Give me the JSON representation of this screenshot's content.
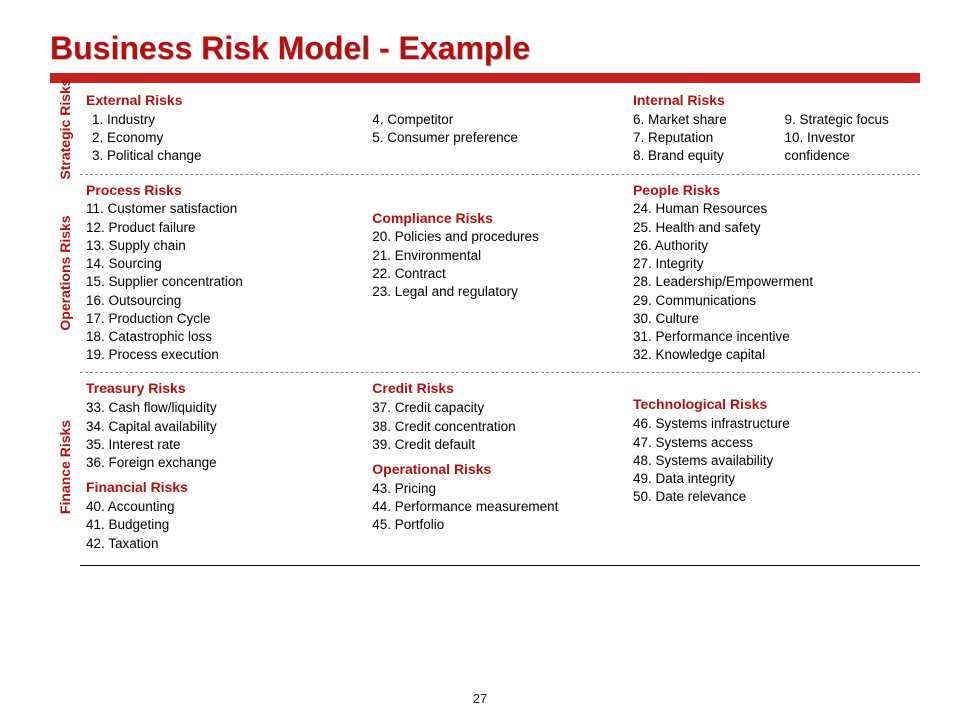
{
  "title": "Business Risk Model - Example",
  "pageNumber": "27",
  "colors": {
    "heading": "#b41010",
    "bar": "#c82020",
    "text": "#000000",
    "background": "#ffffff",
    "dash": "#888888"
  },
  "typography": {
    "title_fontsize_pt": 24,
    "label_fontsize_pt": 10.5,
    "body_fontsize_pt": 10,
    "font_family": "Arial"
  },
  "bands": {
    "strategic": {
      "label": "Strategic Risks",
      "external": {
        "heading": "External Risks",
        "colA": [
          "1. Industry",
          "2. Economy",
          "3. Political change"
        ],
        "colB": [
          "4. Competitor",
          "5. Consumer preference"
        ]
      },
      "internal": {
        "heading": "Internal Risks",
        "colA": [
          "6. Market share",
          "7. Reputation",
          "8. Brand equity"
        ],
        "colB": [
          "9.  Strategic focus",
          "10. Investor confidence"
        ]
      }
    },
    "operations": {
      "label": "Operations Risks",
      "process": {
        "heading": "Process Risks",
        "items": [
          "11. Customer satisfaction",
          "12. Product failure",
          "13. Supply chain",
          "14. Sourcing",
          "15. Supplier concentration",
          "16. Outsourcing",
          "17. Production Cycle",
          "18. Catastrophic loss",
          "19. Process execution"
        ]
      },
      "compliance": {
        "heading": "Compliance Risks",
        "items": [
          "20. Policies and procedures",
          "21. Environmental",
          "22. Contract",
          "23. Legal and regulatory"
        ]
      },
      "people": {
        "heading": "People Risks",
        "items": [
          "24. Human Resources",
          "25. Health and safety",
          "26. Authority",
          "27. Integrity",
          "28. Leadership/Empowerment",
          "29. Communications",
          "30. Culture",
          "31. Performance incentive",
          "32. Knowledge capital"
        ]
      }
    },
    "finance": {
      "label": "Finance Risks",
      "treasury": {
        "heading": "Treasury Risks",
        "items": [
          "33. Cash flow/liquidity",
          "34. Capital availability",
          "35. Interest rate",
          "36. Foreign exchange"
        ]
      },
      "financial": {
        "heading": "Financial Risks",
        "items": [
          "40. Accounting",
          "41. Budgeting",
          "42. Taxation"
        ]
      },
      "credit": {
        "heading": "Credit Risks",
        "items": [
          "37. Credit capacity",
          "38. Credit concentration",
          "39. Credit default"
        ]
      },
      "operational": {
        "heading": "Operational Risks",
        "items": [
          "43. Pricing",
          "44. Performance measurement",
          "45. Portfolio"
        ]
      },
      "technological": {
        "heading": "Technological Risks",
        "items": [
          "46. Systems infrastructure",
          "47. Systems access",
          "48. Systems availability",
          "49. Data integrity",
          "50. Date relevance"
        ]
      }
    }
  }
}
